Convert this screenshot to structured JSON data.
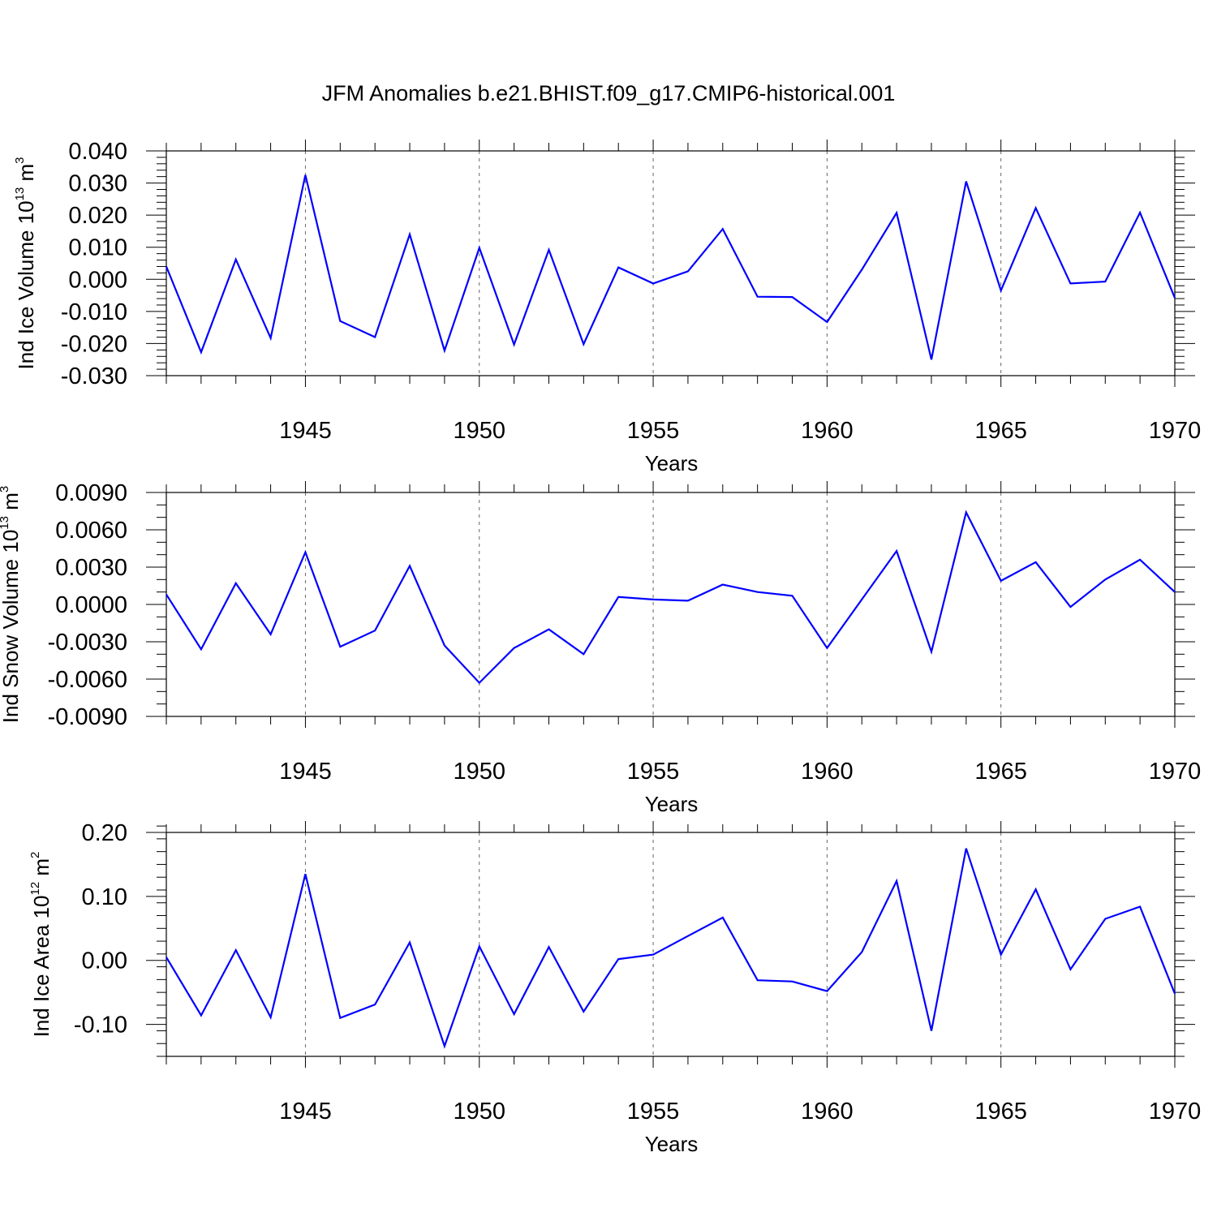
{
  "title": "JFM Anomalies b.e21.BHIST.f09_g17.CMIP6-historical.001",
  "chart_data": [
    {
      "type": "line",
      "title": "JFM Anomalies b.e21.BHIST.f09_g17.CMIP6-historical.001",
      "xlabel": "Years",
      "ylabel": {
        "text": "Ind Ice Volume 10",
        "sup1": "13",
        "unit": " m",
        "sup2": "3"
      },
      "xlim": [
        1941,
        1970
      ],
      "ylim": [
        -0.03,
        0.04
      ],
      "yticks": [
        -0.03,
        -0.02,
        -0.01,
        0.0,
        0.01,
        0.02,
        0.03,
        0.04
      ],
      "ytick_labels": [
        "-0.030",
        "-0.020",
        "-0.010",
        "0.000",
        "0.010",
        "0.020",
        "0.030",
        "0.040"
      ],
      "xticks": [
        1945,
        1950,
        1955,
        1960,
        1965,
        1970
      ],
      "xtick_labels": [
        "1945",
        "1950",
        "1955",
        "1960",
        "1965",
        "1970"
      ],
      "grid": "x-dashed",
      "line_color": "#0000ff",
      "series": [
        {
          "name": "Ind Ice Volume",
          "x": [
            1941,
            1942,
            1943,
            1944,
            1945,
            1946,
            1947,
            1948,
            1949,
            1950,
            1951,
            1952,
            1953,
            1954,
            1955,
            1956,
            1957,
            1958,
            1959,
            1960,
            1961,
            1962,
            1963,
            1964,
            1965,
            1966,
            1967,
            1968,
            1969,
            1970
          ],
          "values": [
            0.004,
            -0.0227,
            0.0062,
            -0.0183,
            0.0325,
            -0.013,
            -0.018,
            0.014,
            -0.0222,
            0.0098,
            -0.0203,
            0.0092,
            -0.0202,
            0.0037,
            -0.0013,
            0.0025,
            0.0157,
            -0.0054,
            -0.0055,
            -0.0133,
            0.003,
            0.0207,
            -0.025,
            0.0305,
            -0.0035,
            0.0222,
            -0.0013,
            -0.0007,
            0.0208,
            -0.0058
          ]
        }
      ]
    },
    {
      "type": "line",
      "xlabel": "Years",
      "ylabel": {
        "text": "Ind Snow Volume 10",
        "sup1": "13",
        "unit": " m",
        "sup2": "3"
      },
      "xlim": [
        1941,
        1970
      ],
      "ylim": [
        -0.009,
        0.009
      ],
      "yticks": [
        -0.009,
        -0.006,
        -0.003,
        0.0,
        0.003,
        0.006,
        0.009
      ],
      "ytick_labels": [
        "-0.0090",
        "-0.0060",
        "-0.0030",
        "0.0000",
        "0.0030",
        "0.0060",
        "0.0090"
      ],
      "xticks": [
        1945,
        1950,
        1955,
        1960,
        1965,
        1970
      ],
      "xtick_labels": [
        "1945",
        "1950",
        "1955",
        "1960",
        "1965",
        "1970"
      ],
      "grid": "x-dashed",
      "line_color": "#0000ff",
      "series": [
        {
          "name": "Ind Snow Volume",
          "x": [
            1941,
            1942,
            1943,
            1944,
            1945,
            1946,
            1947,
            1948,
            1949,
            1950,
            1951,
            1952,
            1953,
            1954,
            1955,
            1956,
            1957,
            1958,
            1959,
            1960,
            1961,
            1962,
            1963,
            1964,
            1965,
            1966,
            1967,
            1968,
            1969,
            1970
          ],
          "values": [
            0.0008,
            -0.0036,
            0.0017,
            -0.0024,
            0.0042,
            -0.0034,
            -0.0021,
            0.0031,
            -0.0033,
            -0.0063,
            -0.0035,
            -0.002,
            -0.004,
            0.0006,
            0.0004,
            0.0003,
            0.0016,
            0.001,
            0.0007,
            -0.0035,
            0.0004,
            0.0043,
            -0.0038,
            0.0074,
            0.0019,
            0.0034,
            -0.0002,
            0.002,
            0.0036,
            0.001
          ]
        }
      ]
    },
    {
      "type": "line",
      "xlabel": "Years",
      "ylabel": {
        "text": "Ind Ice Area 10",
        "sup1": "12",
        "unit": " m",
        "sup2": "2"
      },
      "xlim": [
        1941,
        1970
      ],
      "ylim": [
        -0.15,
        0.2
      ],
      "yticks": [
        -0.1,
        0.0,
        0.1,
        0.2
      ],
      "ytick_labels": [
        "-0.10",
        "0.00",
        "0.10",
        "0.20"
      ],
      "xticks": [
        1945,
        1950,
        1955,
        1960,
        1965,
        1970
      ],
      "xtick_labels": [
        "1945",
        "1950",
        "1955",
        "1960",
        "1965",
        "1970"
      ],
      "grid": "x-dashed",
      "line_color": "#0000ff",
      "series": [
        {
          "name": "Ind Ice Area",
          "x": [
            1941,
            1942,
            1943,
            1944,
            1945,
            1946,
            1947,
            1948,
            1949,
            1950,
            1951,
            1952,
            1953,
            1954,
            1955,
            1956,
            1957,
            1958,
            1959,
            1960,
            1961,
            1962,
            1963,
            1964,
            1965,
            1966,
            1967,
            1968,
            1969,
            1970
          ],
          "values": [
            0.005,
            -0.086,
            0.016,
            -0.089,
            0.135,
            -0.09,
            -0.069,
            0.028,
            -0.134,
            0.022,
            -0.084,
            0.021,
            -0.08,
            0.002,
            0.009,
            0.038,
            0.067,
            -0.031,
            -0.033,
            -0.048,
            0.013,
            0.124,
            -0.11,
            0.175,
            0.009,
            0.111,
            -0.014,
            0.065,
            0.084,
            -0.052
          ]
        }
      ]
    }
  ]
}
